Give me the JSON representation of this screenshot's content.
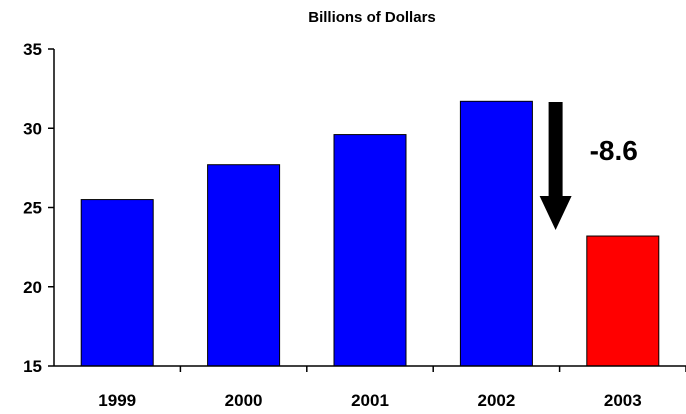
{
  "chart_data": {
    "type": "bar",
    "title": "Billions of Dollars",
    "xlabel": "",
    "ylabel": "",
    "categories": [
      "1999",
      "2000",
      "2001",
      "2002",
      "2003"
    ],
    "values": [
      25.5,
      27.7,
      29.6,
      31.7,
      23.2
    ],
    "ylim": [
      15,
      35
    ],
    "yticks": [
      15,
      20,
      25,
      30,
      35
    ],
    "bar_colors": [
      "#0000ff",
      "#0000ff",
      "#0000ff",
      "#0000ff",
      "#ff0000"
    ],
    "grid": false,
    "legend": "none",
    "annotations": [
      {
        "text": "-8.6",
        "icon": "down-arrow-icon",
        "color": "#000000"
      }
    ]
  }
}
